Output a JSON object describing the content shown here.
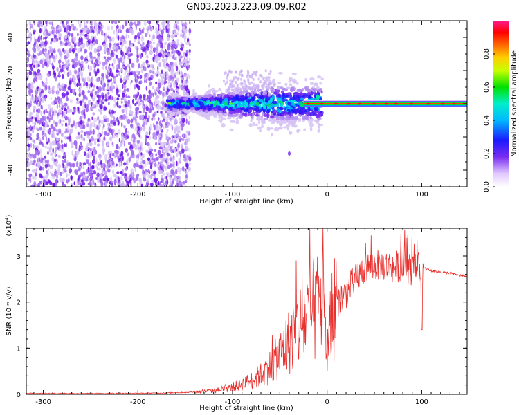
{
  "title": "GN03.2023.223.09.09.R02",
  "colors": {
    "trace": "#e8302d",
    "scatter_low": "#d6c2f4",
    "scatter_mid": "#a36cf0",
    "scatter_high": "#6e18e8",
    "axis": "#000000"
  },
  "chart_data": [
    {
      "type": "heatmap",
      "title": "GN03.2023.223.09.09.R02",
      "xlabel": "Height of straight line (km)",
      "ylabel": "Frequency (Hz)",
      "xlim": [
        -318,
        148
      ],
      "ylim": [
        -50,
        50
      ],
      "xticks": [
        -300,
        -200,
        -100,
        0,
        100
      ],
      "xtick_labels": [
        "-300",
        "-200",
        "-100",
        "0",
        "100"
      ],
      "yticks": [
        -40,
        -20,
        0,
        20,
        40
      ],
      "ytick_labels": [
        "-40",
        "-20",
        "0",
        "20",
        "40"
      ],
      "grid": false,
      "colorbar": {
        "label": "Normalized spectral amplitude",
        "range": [
          0.0,
          1.0
        ],
        "ticks": [
          0.0,
          0.2,
          0.4,
          0.6,
          0.8
        ],
        "tick_labels": [
          "0.0",
          "0.2",
          "0.4",
          "0.6",
          "0.8"
        ],
        "colormap": [
          "#ffffff",
          "#6a0dad",
          "#1e1eff",
          "#00e5ff",
          "#00e000",
          "#ffff00",
          "#ff8000",
          "#ff0000",
          "#ff1493"
        ]
      },
      "regions": [
        {
          "name": "noise",
          "x_range": [
            -318,
            -145
          ],
          "freq_range": [
            -50,
            50
          ],
          "amplitude": 0.05
        },
        {
          "name": "transition",
          "x_range": [
            -170,
            -5
          ],
          "freq_range": [
            -14,
            20
          ],
          "amplitude": 0.4
        },
        {
          "name": "tone",
          "x_range": [
            -25,
            148
          ],
          "freq": 0,
          "amplitude": 1.0
        }
      ]
    },
    {
      "type": "line",
      "xlabel": "Height of straight line (km)",
      "ylabel": "SNR (10 * v/v)",
      "y_multiplier": "(x10",
      "y_multiplier_exp": "4",
      "y_multiplier_close": ")",
      "xlim": [
        -318,
        148
      ],
      "ylim": [
        0,
        3.6
      ],
      "xticks": [
        -300,
        -200,
        -100,
        0,
        100
      ],
      "xtick_labels": [
        "-300",
        "-200",
        "-100",
        "0",
        "100"
      ],
      "yticks": [
        0,
        1,
        2,
        3
      ],
      "ytick_labels": [
        "0",
        "1",
        "2",
        "3"
      ],
      "grid": false,
      "series": [
        {
          "x": [
            -318,
            -250,
            -200,
            -150,
            -130,
            -110,
            -100,
            -90,
            -80,
            -70,
            -60,
            -50,
            -40,
            -30,
            -20,
            -10,
            -5,
            0,
            5,
            10,
            20,
            30,
            40,
            50,
            60,
            70,
            80,
            90,
            100,
            110,
            120,
            130,
            140,
            148
          ],
          "y": [
            0.02,
            0.02,
            0.02,
            0.04,
            0.06,
            0.1,
            0.15,
            0.22,
            0.3,
            0.42,
            0.6,
            0.85,
            1.15,
            1.45,
            1.7,
            1.9,
            2.0,
            0.9,
            1.7,
            2.0,
            2.2,
            2.5,
            2.75,
            2.8,
            2.8,
            2.75,
            2.8,
            2.7,
            2.75,
            2.68,
            2.65,
            2.63,
            2.58,
            2.56
          ]
        }
      ]
    }
  ]
}
